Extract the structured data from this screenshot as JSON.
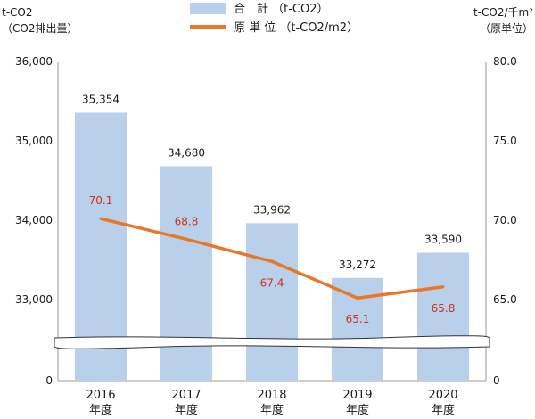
{
  "chart_data": {
    "type": "bar",
    "categories": [
      [
        "2016",
        "年度"
      ],
      [
        "2017",
        "年度"
      ],
      [
        "2018",
        "年度"
      ],
      [
        "2019",
        "年度"
      ],
      [
        "2020",
        "年度"
      ]
    ],
    "series": [
      {
        "name": "合　計 （t-CO2）",
        "type": "bar",
        "axis": "left",
        "color": "#b8d0ea",
        "values": [
          35354,
          34680,
          33962,
          33272,
          33590
        ],
        "labels": [
          "35,354",
          "34,680",
          "33,962",
          "33,272",
          "33,590"
        ]
      },
      {
        "name": "原 単 位 （t-CO2/m2）",
        "type": "line",
        "axis": "right",
        "color": "#e8772a",
        "values": [
          70.1,
          68.8,
          67.4,
          65.1,
          65.8
        ],
        "labels": [
          "70.1",
          "68.8",
          "67.4",
          "65.1",
          "65.8"
        ],
        "label_color": "#d0301f"
      }
    ],
    "y_left": {
      "title_lines": [
        "t-CO2",
        "（CO2排出量）"
      ],
      "ticks": [
        {
          "value": 0,
          "label": "0"
        },
        {
          "value": 33000,
          "label": "33,000"
        },
        {
          "value": 34000,
          "label": "34,000"
        },
        {
          "value": 35000,
          "label": "35,000"
        },
        {
          "value": 36000,
          "label": "36,000"
        }
      ],
      "range": [
        33000,
        36000
      ],
      "broken": true
    },
    "y_right": {
      "title_lines": [
        "t-CO2/千m²",
        "（原単位）"
      ],
      "ticks": [
        {
          "value": 0,
          "label": "0"
        },
        {
          "value": 65,
          "label": "65.0"
        },
        {
          "value": 70,
          "label": "70.0"
        },
        {
          "value": 75,
          "label": "75.0"
        },
        {
          "value": 80,
          "label": "80.0"
        }
      ],
      "range": [
        65,
        80
      ],
      "broken": true
    },
    "legend_position": "top-center",
    "grid": false
  }
}
